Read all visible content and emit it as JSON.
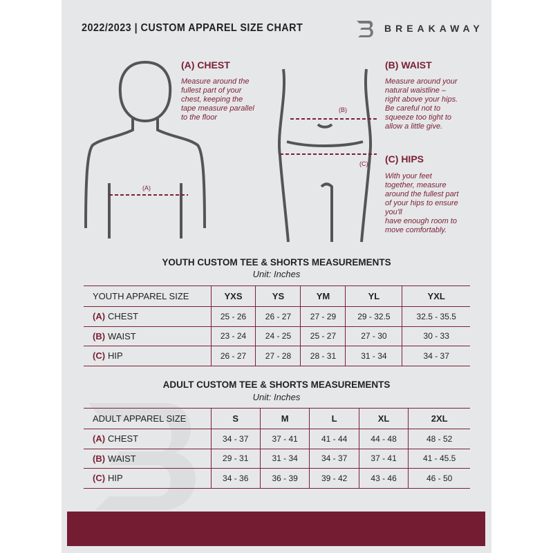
{
  "header": {
    "title": "2022/2023  |  CUSTOM APPAREL SIZE CHART",
    "brand": "BREAKAWAY",
    "logo_letter": "B"
  },
  "guide": {
    "chest": {
      "heading": "(A) CHEST",
      "text": [
        "Measure around the",
        "fullest part of your",
        "chest, keeping the",
        "tape measure parallel",
        "to the floor"
      ],
      "marker": "(A)"
    },
    "waist": {
      "heading": "(B) WAIST",
      "text": [
        "Measure around your",
        "natural waistline –",
        "right above your hips.",
        "Be careful not to",
        "squeeze too tight to",
        "allow a little give."
      ],
      "marker": "(B)"
    },
    "hips": {
      "heading": "(C) HIPS",
      "text": [
        "With your feet",
        "together, measure",
        "around the fullest part",
        "of your hips to ensure",
        "you'll",
        "have enough room to",
        "move comfortably."
      ],
      "marker": "(C)"
    }
  },
  "youth": {
    "title": "YOUTH CUSTOM TEE & SHORTS MEASUREMENTS",
    "unit": "Unit: Inches",
    "size_label": "YOUTH APPAREL SIZE",
    "sizes": [
      "YXS",
      "YS",
      "YM",
      "YL",
      "YXL"
    ],
    "rows": [
      {
        "letter": "(A)",
        "name": "CHEST",
        "values": [
          "25 - 26",
          "26 - 27",
          "27 - 29",
          "29 - 32.5",
          "32.5 - 35.5"
        ]
      },
      {
        "letter": "(B)",
        "name": "WAIST",
        "values": [
          "23 - 24",
          "24 - 25",
          "25 - 27",
          "27 - 30",
          "30 - 33"
        ]
      },
      {
        "letter": "(C)",
        "name": "HIP",
        "values": [
          "26 - 27",
          "27 - 28",
          "28 - 31",
          "31 - 34",
          "34 - 37"
        ]
      }
    ]
  },
  "adult": {
    "title": "ADULT CUSTOM TEE & SHORTS MEASUREMENTS",
    "unit": "Unit: Inches",
    "size_label": "ADULT APPAREL SIZE",
    "sizes": [
      "S",
      "M",
      "L",
      "XL",
      "2XL"
    ],
    "rows": [
      {
        "letter": "(A)",
        "name": "CHEST",
        "values": [
          "34 - 37",
          "37 - 41",
          "41 - 44",
          "44 - 48",
          "48 - 52"
        ]
      },
      {
        "letter": "(B)",
        "name": "WAIST",
        "values": [
          "29 - 31",
          "31 - 34",
          "34 - 37",
          "37 - 41",
          "41 - 45.5"
        ]
      },
      {
        "letter": "(C)",
        "name": "HIP",
        "values": [
          "34 - 36",
          "36 - 39",
          "39 - 42",
          "43 - 46",
          "46 - 50"
        ]
      }
    ]
  },
  "colors": {
    "accent": "#7a1f35",
    "footer": "#731c32",
    "page": "#e6e7e8"
  }
}
